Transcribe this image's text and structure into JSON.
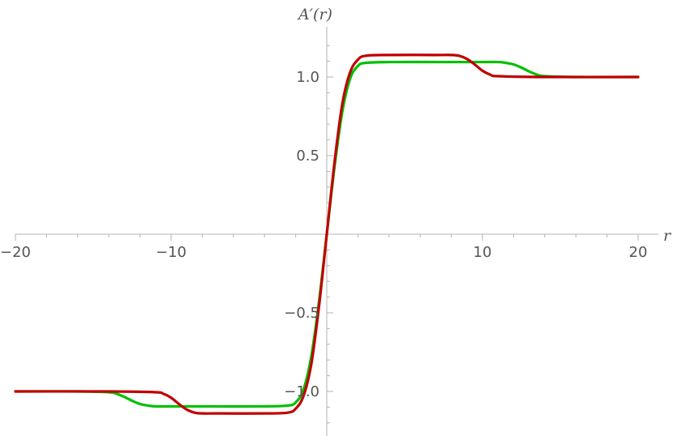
{
  "chart_data": {
    "type": "line",
    "title": "",
    "xlabel": "r",
    "ylabel": "A′(r)",
    "xlim": [
      -20,
      20
    ],
    "ylim": [
      -1.27,
      1.27
    ],
    "grid": false,
    "x_ticks": [
      {
        "value": -20,
        "label": "−20"
      },
      {
        "value": -10,
        "label": "−10"
      },
      {
        "value": 10,
        "label": "10"
      },
      {
        "value": 20,
        "label": "20"
      }
    ],
    "y_ticks": [
      {
        "value": 1.0,
        "label": "1.0"
      },
      {
        "value": 0.5,
        "label": "0.5"
      },
      {
        "value": -0.5,
        "label": "−0.5"
      },
      {
        "value": -1.0,
        "label": "−1.0"
      }
    ],
    "series": [
      {
        "color": "#00c000",
        "x": [
          -20,
          -16,
          -14,
          -13.5,
          -13,
          -12.5,
          -12,
          -11.5,
          -11,
          -10,
          -8,
          -4,
          -2.5,
          -2,
          -1.5,
          -1,
          -0.5,
          0,
          0.5,
          1,
          1.5,
          2,
          2.5,
          4,
          8,
          10,
          11,
          11.5,
          12,
          12.5,
          13,
          13.5,
          14,
          16,
          20
        ],
        "y": [
          -1.0,
          -1.0,
          -1.005,
          -1.015,
          -1.035,
          -1.06,
          -1.08,
          -1.09,
          -1.095,
          -1.095,
          -1.095,
          -1.095,
          -1.09,
          -1.07,
          -0.99,
          -0.78,
          -0.43,
          0.0,
          0.43,
          0.78,
          0.99,
          1.07,
          1.09,
          1.095,
          1.095,
          1.095,
          1.095,
          1.09,
          1.08,
          1.06,
          1.035,
          1.015,
          1.005,
          1.0,
          1.0
        ]
      },
      {
        "color": "#c00000",
        "x": [
          -20,
          -14,
          -11,
          -10.5,
          -10,
          -9.5,
          -9,
          -8.5,
          -8,
          -7,
          -4,
          -2.5,
          -2,
          -1.5,
          -1,
          -0.5,
          0,
          0.5,
          1,
          1.5,
          2,
          2.5,
          4,
          7,
          8,
          8.5,
          9,
          9.5,
          10,
          10.5,
          11,
          14,
          20
        ],
        "y": [
          -1.0,
          -1.0,
          -1.005,
          -1.015,
          -1.04,
          -1.08,
          -1.115,
          -1.135,
          -1.14,
          -1.14,
          -1.14,
          -1.135,
          -1.11,
          -1.03,
          -0.83,
          -0.46,
          0.0,
          0.46,
          0.83,
          1.03,
          1.11,
          1.135,
          1.14,
          1.14,
          1.14,
          1.135,
          1.115,
          1.08,
          1.04,
          1.015,
          1.005,
          1.0,
          1.0
        ]
      }
    ]
  }
}
